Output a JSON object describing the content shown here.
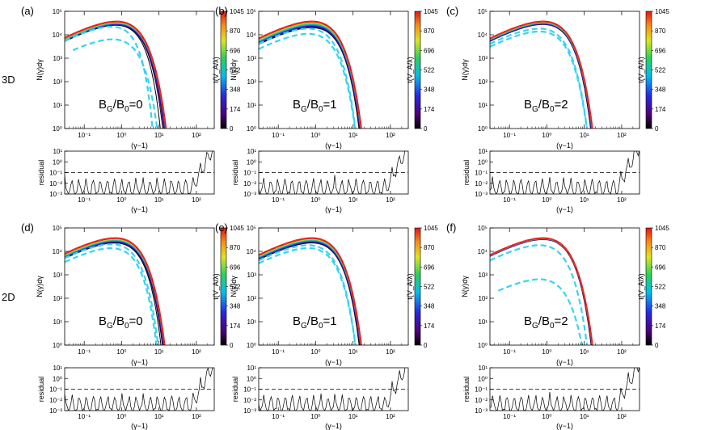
{
  "figure": {
    "row_labels": [
      "3D",
      "2D"
    ],
    "colors": {
      "guide_dashed": "#39d3f0",
      "final_dashed": "#e8312a",
      "residual_line": "#000000"
    }
  },
  "chart_data": [
    {
      "id": "a",
      "panel_label": "(a)",
      "row": "3D",
      "type": "line",
      "annotation": "B_G/B_0=0",
      "annot_parts": [
        "B",
        "G",
        "/B",
        "0",
        "=0"
      ],
      "xlabel": "(γ−1)",
      "ylabel": "N(γ)dγ",
      "xscale": "log",
      "yscale": "log",
      "xlim": [
        0.03,
        300
      ],
      "ylim": [
        1,
        100000
      ],
      "xticks": [
        "10⁻¹",
        "10⁰",
        "10¹",
        "10²"
      ],
      "yticks": [
        "10⁰",
        "10¹",
        "10²",
        "10³",
        "10⁴",
        "10⁵"
      ],
      "colorbar": {
        "label": "t(V_A/λ)",
        "ticks": [
          "0",
          "174",
          "348",
          "522",
          "696",
          "870",
          "1045"
        ],
        "range": [
          0,
          1045
        ]
      },
      "spectra": {
        "peak_x": 1.2,
        "peak_y": 40000,
        "low_slope": 0.5,
        "final_cutoff": 200,
        "init_cutoff": 6,
        "init_peak": 28000
      },
      "guides": [
        {
          "name": "dashed-cyan-1",
          "peak_y": 25000,
          "cutoff": 3
        },
        {
          "name": "dashed-cyan-2",
          "peak_y": 7000,
          "cutoff": 7,
          "x0": 0.05
        }
      ],
      "residual": {
        "ylabel": "residual",
        "yticks": [
          "10¹",
          "10⁰",
          "10⁻¹",
          "10⁻²",
          "10⁻³"
        ],
        "threshold": 0.1,
        "xlabel": "(γ−1)"
      }
    },
    {
      "id": "b",
      "panel_label": "(b)",
      "row": "3D",
      "type": "line",
      "annotation": "B_G/B_0=1",
      "annot_parts": [
        "B",
        "G",
        "/B",
        "0",
        "=1"
      ],
      "xlabel": "(γ−1)",
      "ylabel": "N(γ)dγ",
      "xscale": "log",
      "yscale": "log",
      "xlim": [
        0.03,
        300
      ],
      "ylim": [
        1,
        100000
      ],
      "xticks": [
        "10⁻¹",
        "10⁰",
        "10¹",
        "10²"
      ],
      "yticks": [
        "10⁰",
        "10¹",
        "10²",
        "10³",
        "10⁴",
        "10⁵"
      ],
      "colorbar": {
        "label": "t(V_A/λ)",
        "ticks": [
          "0",
          "174",
          "348",
          "522",
          "696",
          "870",
          "1045"
        ],
        "range": [
          0,
          1045
        ]
      },
      "spectra": {
        "peak_x": 1.3,
        "peak_y": 40000,
        "low_slope": 0.5,
        "final_cutoff": 70,
        "init_cutoff": 14,
        "init_peak": 22000
      },
      "guides": [
        {
          "name": "dashed-cyan-1",
          "peak_y": 20000,
          "cutoff": 12
        },
        {
          "name": "dashed-cyan-2",
          "peak_y": 12000,
          "cutoff": 14
        }
      ],
      "residual": {
        "ylabel": "residual",
        "yticks": [
          "10¹",
          "10⁰",
          "10⁻¹",
          "10⁻²",
          "10⁻³"
        ],
        "threshold": 0.1,
        "xlabel": "(γ−1)"
      }
    },
    {
      "id": "c",
      "panel_label": "(c)",
      "row": "3D",
      "type": "line",
      "annotation": "B_G/B_0=2",
      "annot_parts": [
        "B",
        "G",
        "/B",
        "0",
        "=2"
      ],
      "xlabel": "(γ−1)",
      "ylabel": "N(γ)dγ",
      "xscale": "log",
      "yscale": "log",
      "xlim": [
        0.03,
        300
      ],
      "ylim": [
        1,
        100000
      ],
      "xticks": [
        "10⁻¹",
        "10⁰",
        "10¹",
        "10²"
      ],
      "yticks": [
        "10⁰",
        "10¹",
        "10²",
        "10³",
        "10⁴",
        "10⁵"
      ],
      "colorbar": {
        "label": "t(V_A/λ)",
        "ticks": [
          "0",
          "174",
          "348",
          "522",
          "696",
          "870",
          "1045"
        ],
        "range": [
          0,
          1045
        ]
      },
      "spectra": {
        "peak_x": 1.3,
        "peak_y": 40000,
        "low_slope": 0.5,
        "final_cutoff": 40,
        "init_cutoff": 14,
        "init_peak": 30000
      },
      "guides": [
        {
          "name": "dashed-cyan-1",
          "peak_y": 20000,
          "cutoff": 14
        },
        {
          "name": "dashed-cyan-2",
          "peak_y": 15000,
          "cutoff": 16
        }
      ],
      "residual": {
        "ylabel": "residual",
        "yticks": [
          "10¹",
          "10⁰",
          "10⁻¹",
          "10⁻²",
          "10⁻³"
        ],
        "threshold": 0.1,
        "xlabel": "(γ−1)"
      }
    },
    {
      "id": "d",
      "panel_label": "(d)",
      "row": "2D",
      "type": "line",
      "annotation": "B_G/B_0=0",
      "annot_parts": [
        "B",
        "G",
        "/B",
        "0",
        "=0"
      ],
      "xlabel": "(γ−1)",
      "ylabel": "N(γ)dγ",
      "xscale": "log",
      "yscale": "log",
      "xlim": [
        0.03,
        300
      ],
      "ylim": [
        1,
        100000
      ],
      "xticks": [
        "10⁻¹",
        "10⁰",
        "10¹",
        "10²"
      ],
      "yticks": [
        "10⁰",
        "10¹",
        "10²",
        "10³",
        "10⁴",
        "10⁵"
      ],
      "colorbar": {
        "label": "t(V_A/λ)",
        "ticks": [
          "0",
          "174",
          "348",
          "522",
          "696",
          "870",
          "1045"
        ],
        "range": [
          0,
          1045
        ]
      },
      "spectra": {
        "peak_x": 1.1,
        "peak_y": 40000,
        "low_slope": 0.5,
        "final_cutoff": 200,
        "init_cutoff": 8,
        "init_peak": 25000
      },
      "guides": [
        {
          "name": "dashed-cyan-1",
          "peak_y": 15000,
          "cutoff": 6
        },
        {
          "name": "dashed-cyan-2",
          "peak_y": 22000,
          "cutoff": 8
        }
      ],
      "residual": {
        "ylabel": "residual",
        "yticks": [
          "10¹",
          "10⁰",
          "10⁻¹",
          "10⁻²",
          "10⁻³"
        ],
        "threshold": 0.1,
        "xlabel": "(γ−1)"
      }
    },
    {
      "id": "e",
      "panel_label": "(e)",
      "row": "2D",
      "type": "line",
      "annotation": "B_G/B_0=1",
      "annot_parts": [
        "B",
        "G",
        "/B",
        "0",
        "=1"
      ],
      "xlabel": "(γ−1)",
      "ylabel": "N(γ)dγ",
      "xscale": "log",
      "yscale": "log",
      "xlim": [
        0.03,
        300
      ],
      "ylim": [
        1,
        100000
      ],
      "xticks": [
        "10⁻¹",
        "10⁰",
        "10¹",
        "10²"
      ],
      "yticks": [
        "10⁰",
        "10¹",
        "10²",
        "10³",
        "10⁴",
        "10⁵"
      ],
      "colorbar": {
        "label": "t(V_A/λ)",
        "ticks": [
          "0",
          "174",
          "348",
          "522",
          "696",
          "870",
          "1045"
        ],
        "range": [
          0,
          1045
        ]
      },
      "spectra": {
        "peak_x": 1.3,
        "peak_y": 40000,
        "low_slope": 0.5,
        "final_cutoff": 80,
        "init_cutoff": 14,
        "init_peak": 25000
      },
      "guides": [
        {
          "name": "dashed-cyan-1",
          "peak_y": 20000,
          "cutoff": 12
        },
        {
          "name": "dashed-cyan-2",
          "peak_y": 15000,
          "cutoff": 14
        }
      ],
      "residual": {
        "ylabel": "residual",
        "yticks": [
          "10¹",
          "10⁰",
          "10⁻¹",
          "10⁻²",
          "10⁻³"
        ],
        "threshold": 0.1,
        "xlabel": "(γ−1)"
      }
    },
    {
      "id": "f",
      "panel_label": "(f)",
      "row": "2D",
      "type": "line",
      "annotation": "B_G/B_0=2",
      "annot_parts": [
        "B",
        "G",
        "/B",
        "0",
        "=2"
      ],
      "xlabel": "(γ−1)",
      "ylabel": "N(γ)dγ",
      "xscale": "log",
      "yscale": "log",
      "xlim": [
        0.03,
        300
      ],
      "ylim": [
        1,
        100000
      ],
      "xticks": [
        "10⁻¹",
        "10⁰",
        "10¹",
        "10²"
      ],
      "yticks": [
        "10⁰",
        "10¹",
        "10²",
        "10³",
        "10⁴",
        "10⁵"
      ],
      "colorbar": {
        "label": "t(V_A/λ)",
        "ticks": [
          "0",
          "174",
          "348",
          "522",
          "696",
          "870",
          "1045"
        ],
        "range": [
          0,
          1045
        ]
      },
      "spectra": {
        "peak_x": 1.3,
        "peak_y": 40000,
        "low_slope": 0.5,
        "final_cutoff": 50,
        "init_cutoff": 16,
        "init_peak": 35000
      },
      "guides": [
        {
          "name": "dashed-cyan-1",
          "peak_y": 20000,
          "cutoff": 14
        },
        {
          "name": "dashed-cyan-2",
          "peak_y": 700,
          "cutoff": 18,
          "x0": 0.05
        }
      ],
      "residual": {
        "ylabel": "residual",
        "yticks": [
          "10¹",
          "10⁰",
          "10⁻¹",
          "10⁻²",
          "10⁻³"
        ],
        "threshold": 0.1,
        "xlabel": "(γ−1)"
      }
    }
  ]
}
